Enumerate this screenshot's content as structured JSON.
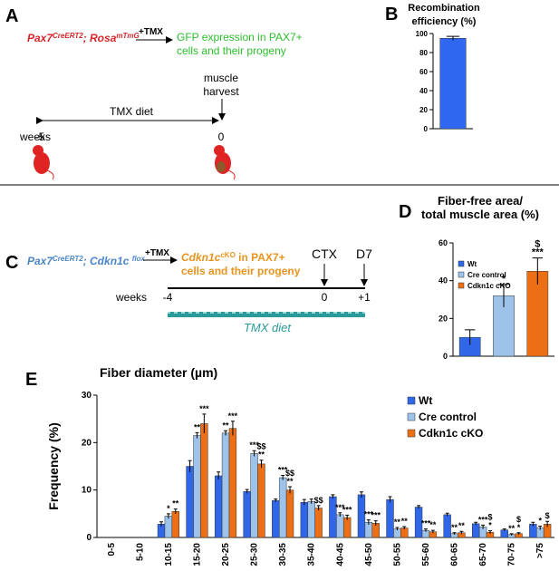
{
  "panels": {
    "letters": [
      "A",
      "B",
      "C",
      "D",
      "E"
    ],
    "a": {
      "genotype": [
        "Pax7",
        "CreERT2",
        "; Rosa",
        "mTmG"
      ],
      "treatment": "+TMX",
      "outcome": [
        "GFP expression in PAX7+",
        "cells and their progeny"
      ],
      "harvest": [
        "muscle",
        "harvest"
      ],
      "diet": "TMX diet",
      "weeks": "weeks",
      "start": "-5",
      "end": "0"
    },
    "c": {
      "genotype": [
        "Pax7",
        "CreERT2",
        "; Cdkn1c ",
        "flox"
      ],
      "treatment": "+TMX",
      "outcome": [
        "Cdkn1c",
        "cKO",
        " in PAX7+",
        "cells and their progeny"
      ],
      "injury": "CTX",
      "day": "D7",
      "weeks": "weeks",
      "start": "-4",
      "injury_week": "0",
      "end": "+1",
      "diet": "TMX diet"
    }
  },
  "chart_data": [
    {
      "type": "bar",
      "title": [
        "Recombination",
        "efficiency (%)"
      ],
      "series": [
        {
          "color": "#2f67f0",
          "values": [
            95
          ],
          "errors": [
            2
          ]
        }
      ],
      "ylim": [
        0,
        100
      ],
      "yticks": [
        0,
        20,
        40,
        60,
        80,
        100
      ]
    },
    {
      "type": "bar",
      "title": [
        "Fiber-free area/",
        "total muscle area (%)"
      ],
      "legend": "upper left",
      "series": [
        {
          "name": "Wt",
          "color": "#2f67e8",
          "values": [
            10
          ],
          "errors": [
            4
          ]
        },
        {
          "name": "Cre control",
          "color": "#9dc3ea",
          "values": [
            32
          ],
          "errors": [
            6
          ],
          "sig": [
            [
              "*"
            ]
          ]
        },
        {
          "name": "Cdkn1c cKO",
          "color": "#ec6f16",
          "values": [
            45
          ],
          "errors": [
            7
          ],
          "sig": [
            [
              "$",
              "***"
            ]
          ]
        }
      ],
      "ylim": [
        0,
        60
      ],
      "yticks": [
        0,
        20,
        40,
        60
      ]
    },
    {
      "type": "bar",
      "title": "Fiber diameter (µm)",
      "ylabel": "Frequency (%)",
      "legend": "upper right",
      "categories": [
        "0-5",
        "5-10",
        "10-15",
        "15-20",
        "20-25",
        "25-30",
        "30-35",
        "35-40",
        "40-45",
        "45-50",
        "50-55",
        "55-60",
        "60-65",
        "65-70",
        "70-75",
        ">75"
      ],
      "series": [
        {
          "name": "Wt",
          "color": "#2f67e8",
          "values": [
            0,
            0,
            2.8,
            15,
            13,
            9.7,
            7.8,
            7.4,
            8.6,
            9,
            8,
            6.4,
            4.8,
            2.9,
            1.6,
            2.8
          ],
          "errors": [
            0,
            0,
            0.5,
            1.2,
            0.8,
            0.4,
            0.3,
            0.6,
            0.4,
            0.6,
            0.6,
            0.3,
            0.3,
            0.3,
            0.2,
            0.4
          ]
        },
        {
          "name": "Cre control",
          "color": "#9dc3ea",
          "values": [
            0,
            0,
            4.5,
            21.5,
            22,
            17.7,
            12.6,
            7.6,
            4.8,
            3.2,
            1.8,
            1.5,
            0.8,
            2.2,
            0.6,
            2
          ],
          "errors": [
            0,
            0,
            0.5,
            0.6,
            0.5,
            0.6,
            0.5,
            0.5,
            0.4,
            0.5,
            0.3,
            0.3,
            0.2,
            0.4,
            0.2,
            0.4
          ],
          "sig": [
            null,
            null,
            [
              "*"
            ],
            [
              "**"
            ],
            [
              "**"
            ],
            [
              "***"
            ],
            [
              "***"
            ],
            null,
            [
              "***"
            ],
            [
              "***"
            ],
            [
              "**"
            ],
            [
              "***"
            ],
            [
              "**"
            ],
            [
              "***"
            ],
            [
              "**"
            ],
            [
              "*"
            ]
          ]
        },
        {
          "name": "Cdkn1c cKO",
          "color": "#ec6f16",
          "values": [
            0,
            0,
            5.5,
            24,
            23,
            15.5,
            10,
            6.2,
            4.2,
            3,
            2,
            1.2,
            1,
            1.1,
            0.8,
            2.8
          ],
          "errors": [
            0,
            0,
            0.5,
            2,
            1.5,
            0.8,
            0.7,
            0.5,
            0.5,
            0.5,
            0.3,
            0.3,
            0.3,
            0.3,
            0.2,
            0.6
          ],
          "sig": [
            null,
            null,
            [
              "**"
            ],
            [
              "***"
            ],
            [
              "***"
            ],
            [
              "$$",
              "**"
            ],
            [
              "$$",
              "**"
            ],
            [
              "$$"
            ],
            [
              "***"
            ],
            [
              "***"
            ],
            [
              "**"
            ],
            [
              "**"
            ],
            [
              "**"
            ],
            [
              "$",
              "*"
            ],
            [
              "$",
              "*"
            ],
            [
              "$"
            ]
          ]
        }
      ],
      "ylim": [
        0,
        30
      ],
      "yticks": [
        0,
        10,
        20,
        30
      ]
    }
  ]
}
